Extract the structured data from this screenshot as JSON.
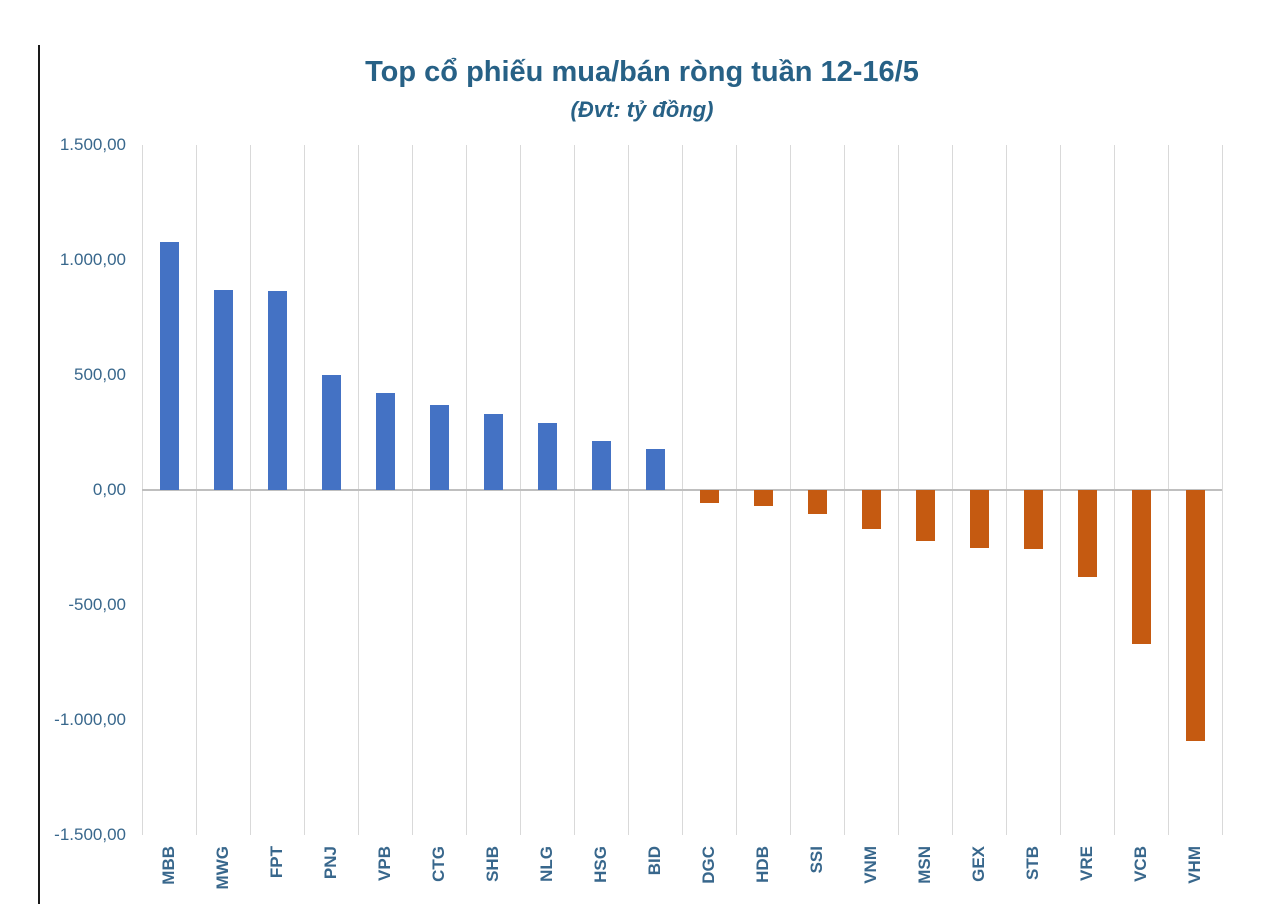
{
  "chart_data": {
    "type": "bar",
    "title": "Top cổ phiếu mua/bán ròng tuần 12-16/5",
    "subtitle": "(Đvt: tỷ đồng)",
    "unit": "tỷ đồng",
    "categories": [
      "MBB",
      "MWG",
      "FPT",
      "PNJ",
      "VPB",
      "CTG",
      "SHB",
      "NLG",
      "HSG",
      "BID",
      "DGC",
      "HDB",
      "SSI",
      "VNM",
      "MSN",
      "GEX",
      "STB",
      "VRE",
      "VCB",
      "VHM"
    ],
    "values": [
      1080,
      870,
      865,
      500,
      420,
      370,
      330,
      290,
      215,
      180,
      -55,
      -70,
      -105,
      -170,
      -220,
      -250,
      -255,
      -380,
      -670,
      -1090
    ],
    "yticks": [
      {
        "value": 1500,
        "label": "1.500,00"
      },
      {
        "value": 1000,
        "label": "1.000,00"
      },
      {
        "value": 500,
        "label": "500,00"
      },
      {
        "value": 0,
        "label": "0,00"
      },
      {
        "value": -500,
        "label": "-500,00"
      },
      {
        "value": -1000,
        "label": "-1.000,00"
      },
      {
        "value": -1500,
        "label": "-1.500,00"
      }
    ],
    "ylim": [
      -1500,
      1500
    ],
    "colors": {
      "positive_bar": "#4472C4",
      "negative_bar": "#C55A11",
      "title_text": "#276186",
      "axis_label_text": "#38678C",
      "gridline": "#D9D9D9",
      "zero_line": "#BFBFBF",
      "axis_line": "#1A1A1A"
    },
    "grid": "vertical-category-separators",
    "legend": "none"
  }
}
